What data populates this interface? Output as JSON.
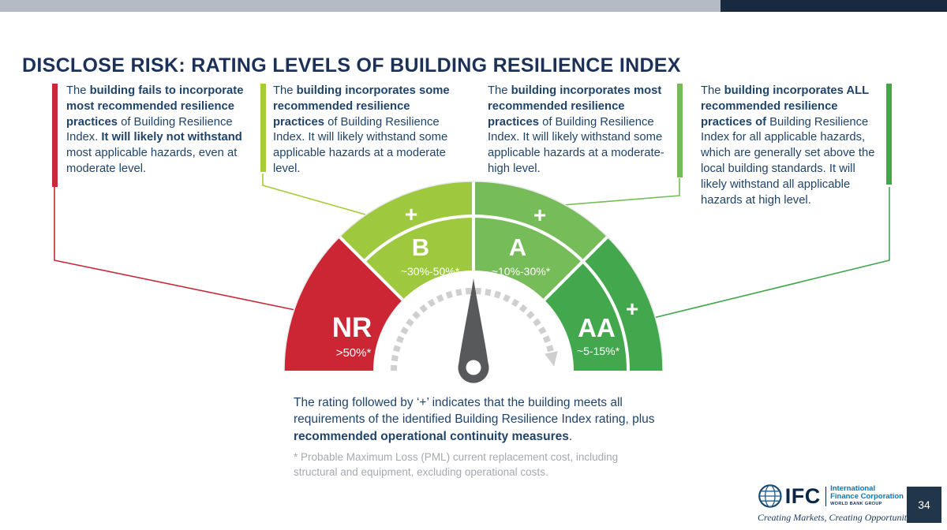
{
  "slide": {
    "title": "DISCLOSE RISK: RATING LEVELS OF BUILDING RESILIENCE INDEX",
    "page_number": "34"
  },
  "theme": {
    "topbar_gray": "#B3BBC5",
    "topbar_navy": "#19293F",
    "title_color": "#1B3158",
    "body_text_color": "#1F4369",
    "footnote_color": "#A5A9AE",
    "needle_color": "#58595B",
    "dashed_arc_color": "#CFCFCF",
    "page_badge_bg": "#22364B",
    "ifc_navy": "#0B2747",
    "ifc_blue": "#0079C1"
  },
  "callouts": [
    {
      "rating": "NR",
      "accent_color": "#C62A38",
      "accent_side": "left",
      "segments": [
        {
          "t": "The ",
          "b": false
        },
        {
          "t": "building fails to incorporate most recommended resilience practices",
          "b": true
        },
        {
          "t": " of Building Resilience Index. ",
          "b": false
        },
        {
          "t": "It will likely not withstand",
          "b": true
        },
        {
          "t": " most applicable hazards, even at moderate level.",
          "b": false
        }
      ]
    },
    {
      "rating": "B",
      "accent_color": "#A5CB39",
      "accent_side": "left",
      "segments": [
        {
          "t": "The ",
          "b": false
        },
        {
          "t": "building incorporates some recommended resilience practices",
          "b": true
        },
        {
          "t": " of Building Resilience Index. It will likely withstand some applicable hazards at a moderate level.",
          "b": false
        }
      ]
    },
    {
      "rating": "A",
      "accent_color": "#76BC58",
      "accent_side": "right",
      "segments": [
        {
          "t": "The ",
          "b": false
        },
        {
          "t": "building incorporates most recommended resilience practices",
          "b": true
        },
        {
          "t": " of Building Resilience Index. It will likely withstand some applicable hazards at a moderate-high level.",
          "b": false
        }
      ]
    },
    {
      "rating": "AA",
      "accent_color": "#42A64C",
      "accent_side": "right",
      "segments": [
        {
          "t": "The ",
          "b": false
        },
        {
          "t": "building incorporates ALL recommended resilience practices of",
          "b": true
        },
        {
          "t": " Building Resilience Index for all applicable hazards, which are generally set above the local building standards. It will likely withstand all applicable hazards at high level.",
          "b": false
        }
      ]
    }
  ],
  "gauge": {
    "type": "half-donut rating scale",
    "ratings": [
      {
        "code": "NR",
        "range": ">50%*",
        "color": "#CC2534",
        "plus": ""
      },
      {
        "code": "B",
        "range": "~30%-50%*",
        "color": "#9EC93E",
        "plus": "+"
      },
      {
        "code": "A",
        "range": "~10%-30%*",
        "color": "#76BC58",
        "plus": "+"
      },
      {
        "code": "AA",
        "range": "~5-15%*",
        "color": "#43A74D",
        "plus": "+"
      }
    ]
  },
  "notes": {
    "plus_note_segments": [
      {
        "t": "The rating followed by ‘+’ indicates that the building meets all requirements of the identified Building Resilience Index rating, plus ",
        "b": false
      },
      {
        "t": "recommended operational continuity measures",
        "b": true
      },
      {
        "t": ".",
        "b": false
      }
    ],
    "pml_footnote": "* Probable Maximum Loss (PML) current replacement cost, including structural and equipment, excluding operational costs."
  },
  "footer": {
    "logo": {
      "acronym": "IFC",
      "name_line1": "International",
      "name_line2": "Finance Corporation",
      "group": "WORLD BANK GROUP",
      "tagline": "Creating Markets, Creating Opportunities"
    }
  }
}
